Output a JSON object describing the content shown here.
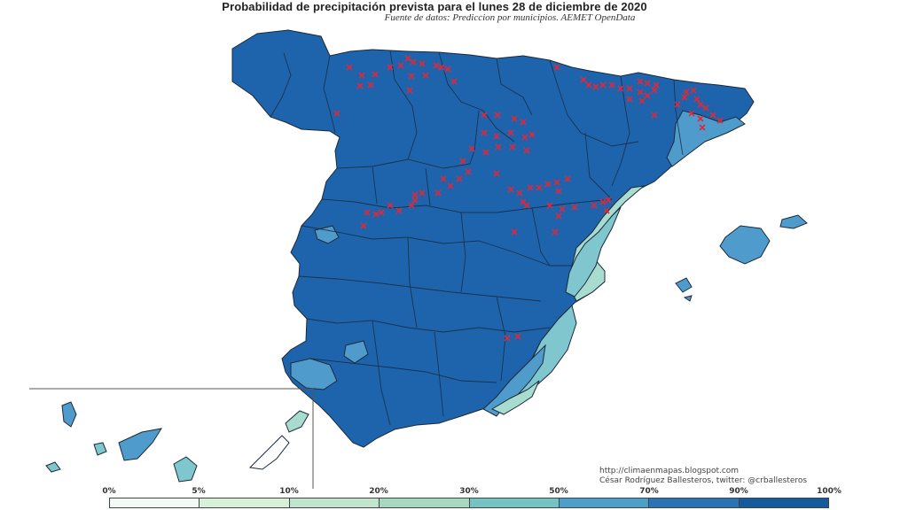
{
  "header": {
    "title": "Probabilidad de precipitación prevista para el lunes 28 de diciembre de 2020",
    "subtitle": "Fuente de datos: Prediccion por municipios. AEMET OpenData"
  },
  "credits": {
    "url": "http://climaenmapas.blogspot.com",
    "author": "César Rodríguez Ballesteros, twitter: @crballesteros"
  },
  "legend": {
    "labels": [
      "0%",
      "5%",
      "10%",
      "20%",
      "30%",
      "50%",
      "70%",
      "90%",
      "100%"
    ],
    "colors": [
      "#f4fbf6",
      "#d8efd8",
      "#c1e4cd",
      "#a6d8c2",
      "#74c3c3",
      "#4aa0c9",
      "#2a73b6",
      "#145a9e"
    ]
  },
  "colors": {
    "main": "#1e64ad",
    "mid": "#4f9ccc",
    "light": "#7fc6cf",
    "pale": "#a7dccf",
    "marker": "#e0283b",
    "border": "#1b2a3a"
  }
}
